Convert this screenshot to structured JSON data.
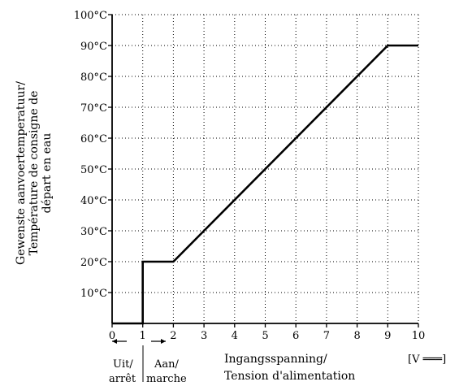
{
  "chart_data": {
    "type": "line",
    "title": "",
    "xlim": [
      0,
      10
    ],
    "ylim": [
      0,
      100
    ],
    "grid": true,
    "x_ticks": [
      "0",
      "1",
      "2",
      "3",
      "4",
      "5",
      "6",
      "7",
      "8",
      "9",
      "10"
    ],
    "y_ticks": [
      "100°C",
      "90°C",
      "80°C",
      "70°C",
      "60°C",
      "50°C",
      "40°C",
      "30°C",
      "20°C",
      "10°C"
    ],
    "y_tick_values": [
      100,
      90,
      80,
      70,
      60,
      50,
      40,
      30,
      20,
      10
    ],
    "ylabel_lines": [
      "Gewenste aanvoertemperatuur/",
      "Température de consigne de",
      "départ en eau"
    ],
    "xlabel_lines": [
      "Ingangsspanning/",
      "Tension d'alimentation"
    ],
    "x_unit": "[V ═══]",
    "annotation_off": [
      "Uit/",
      "arrêt"
    ],
    "annotation_on": [
      "Aan/",
      "marche"
    ],
    "series": [
      {
        "x": [
          0,
          1,
          1,
          2,
          9,
          10
        ],
        "y": [
          0,
          0,
          20,
          20,
          90,
          90
        ]
      }
    ]
  }
}
